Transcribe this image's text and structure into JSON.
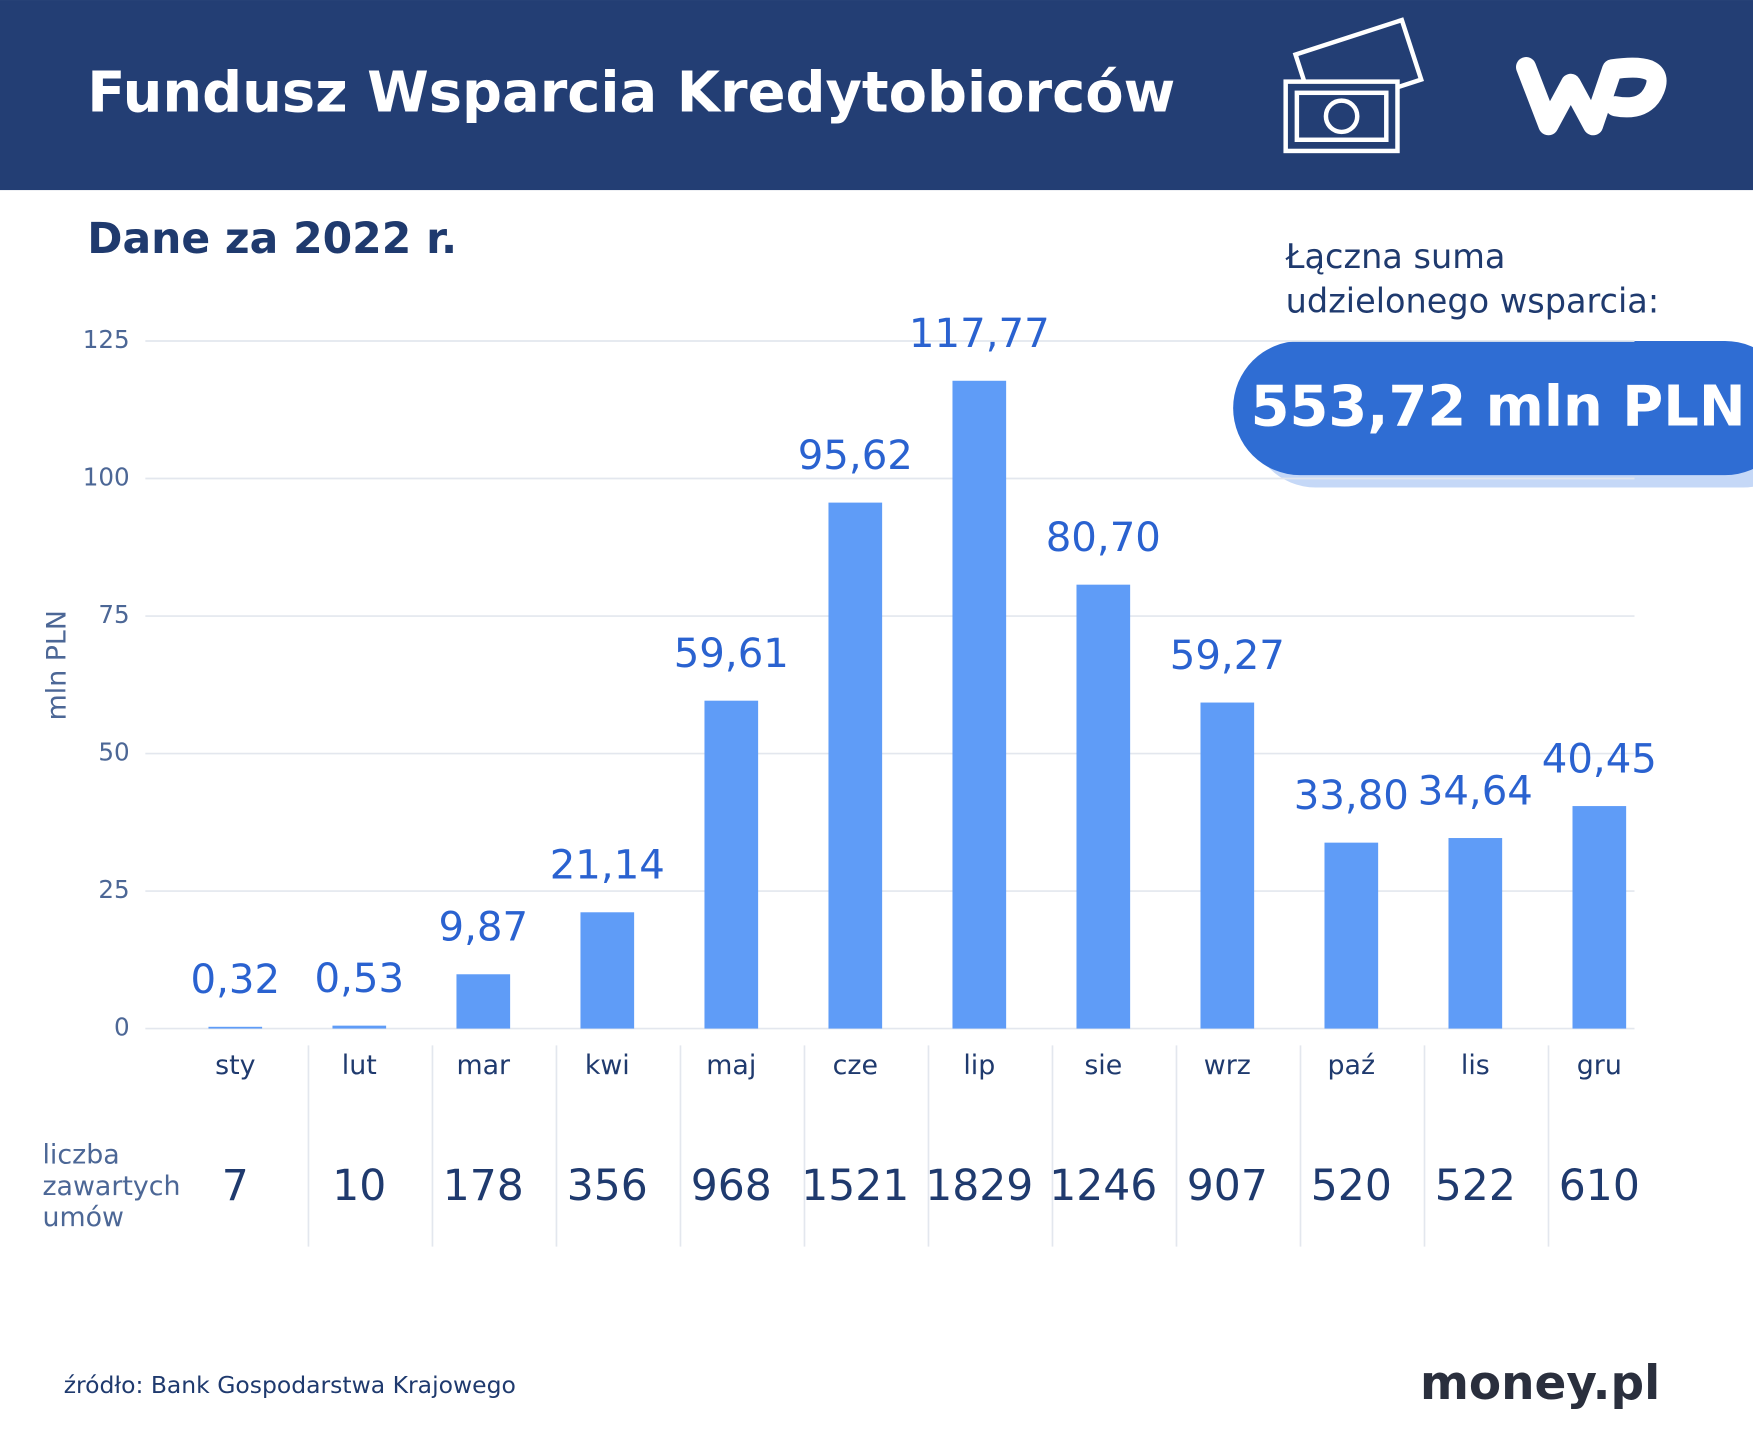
{
  "chart_data": {
    "type": "bar",
    "title": "Fundusz Wsparcia Kredytobiorców",
    "subtitle": "Dane za 2022 r.",
    "total_label": [
      "Łączna suma",
      "udzielonego wsparcia:"
    ],
    "total": "553,72 mln PLN",
    "y_label": "mln PLN",
    "categories": [
      "sty",
      "lut",
      "mar",
      "kwi",
      "maj",
      "cze",
      "lip",
      "sie",
      "wrz",
      "paź",
      "lis",
      "gru"
    ],
    "values": [
      0.32,
      0.53,
      9.87,
      21.14,
      59.61,
      95.62,
      117.77,
      80.7,
      59.27,
      33.8,
      34.64,
      40.45
    ],
    "value_labels": [
      "0,32",
      "0,53",
      "9,87",
      "21,14",
      "59,61",
      "95,62",
      "117,77",
      "80,70",
      "59,27",
      "33,80",
      "34,64",
      "40,45"
    ],
    "color": "#5f9cf7",
    "ylim": [
      0,
      125
    ],
    "yticks": [
      0,
      25,
      50,
      75,
      100,
      125
    ],
    "grid": true,
    "contracts": {
      "label": [
        "liczba",
        "zawartych",
        "umów"
      ],
      "values": [
        7,
        10,
        178,
        356,
        968,
        1521,
        1829,
        1246,
        907,
        520,
        522,
        610
      ]
    },
    "source": "źródło: Bank Gospodarstwa Krajowego",
    "brand": "money.pl"
  }
}
